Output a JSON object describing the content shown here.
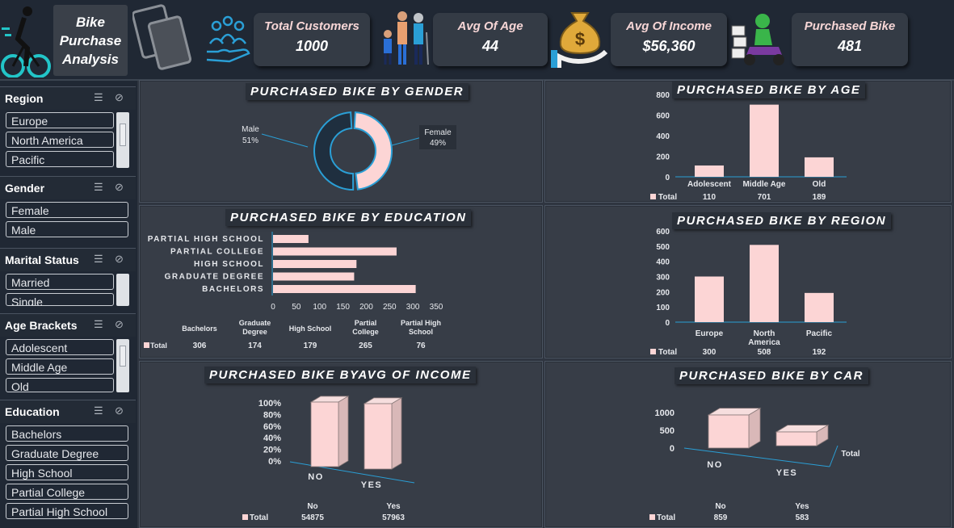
{
  "header": {
    "title_line1": "Bike",
    "title_line2": "Purchase",
    "title_line3": "Analysis",
    "icons": [
      "cyclist-icon",
      "cards-icon",
      "customers-hand-icon",
      "family-icon",
      "money-bag-hand-icon",
      "delivery-scooter-icon"
    ],
    "kpis": [
      {
        "label": "Total Customers",
        "value": "1000"
      },
      {
        "label": "Avg Of Age",
        "value": "44"
      },
      {
        "label": "Avg Of Income",
        "value": "$56,360"
      },
      {
        "label": "Purchased Bike",
        "value": "481"
      }
    ]
  },
  "slicers": {
    "region": {
      "title": "Region",
      "items": [
        "Europe",
        "North America",
        "Pacific"
      ]
    },
    "gender": {
      "title": "Gender",
      "items": [
        "Female",
        "Male"
      ]
    },
    "marital": {
      "title": "Marital Status",
      "items": [
        "Married",
        "Single"
      ]
    },
    "age": {
      "title": "Age Brackets",
      "items": [
        "Adolescent",
        "Middle Age",
        "Old"
      ]
    },
    "education": {
      "title": "Education",
      "items": [
        "Bachelors",
        "Graduate Degree",
        "High School",
        "Partial College",
        "Partial High School"
      ]
    }
  },
  "colors": {
    "bar": "#fcd5d5",
    "dark": "#1f2f3f",
    "accent": "#2a9fd6"
  },
  "chart_data": [
    {
      "type": "pie",
      "title": "PURCHASED BIKE BY GENDER",
      "categories": [
        "Male",
        "Female"
      ],
      "values": [
        51,
        49
      ],
      "labels": [
        "51%",
        "49%"
      ]
    },
    {
      "type": "bar",
      "title": "PURCHASED BIKE BY AGE",
      "categories": [
        "Adolescent",
        "Middle Age",
        "Old"
      ],
      "series": [
        {
          "name": "Total",
          "values": [
            110,
            701,
            189
          ]
        }
      ],
      "ylim": [
        0,
        800
      ],
      "yticks": [
        "800",
        "600",
        "400",
        "200",
        "0"
      ],
      "table_values": [
        "110",
        "701",
        "189"
      ]
    },
    {
      "type": "bar",
      "title": "PURCHASED BIKE BY EDUCATION",
      "categories": [
        "PARTIAL HIGH SCHOOL",
        "PARTIAL COLLEGE",
        "HIGH SCHOOL",
        "GRADUATE DEGREE",
        "BACHELORS"
      ],
      "series": [
        {
          "name": "Total",
          "values": [
            76,
            265,
            179,
            174,
            306
          ]
        }
      ],
      "xlim": [
        0,
        350
      ],
      "xticks": [
        "0",
        "50",
        "100",
        "150",
        "200",
        "250",
        "300",
        "350"
      ],
      "table_categories": [
        "Bachelors",
        "Graduate Degree",
        "High School",
        "Partial College",
        "Partial High School"
      ],
      "table_values": [
        "306",
        "174",
        "179",
        "265",
        "76"
      ]
    },
    {
      "type": "bar",
      "title": "PURCHASED BIKE BY REGION",
      "categories": [
        "Europe",
        "North America",
        "Pacific"
      ],
      "series": [
        {
          "name": "Total",
          "values": [
            300,
            508,
            192
          ]
        }
      ],
      "ylim": [
        0,
        600
      ],
      "yticks": [
        "600",
        "500",
        "400",
        "300",
        "200",
        "100",
        "0"
      ],
      "table_values": [
        "300",
        "508",
        "192"
      ]
    },
    {
      "type": "bar",
      "title": "PURCHASED BIKE BYAVG OF INCOME",
      "categories": [
        "NO",
        "YES"
      ],
      "series": [
        {
          "name": "Total",
          "values": [
            54875,
            57963
          ]
        }
      ],
      "yticks": [
        "100%",
        "80%",
        "60%",
        "40%",
        "20%",
        "0%"
      ],
      "table_categories": [
        "No",
        "Yes"
      ],
      "table_values": [
        "54875",
        "57963"
      ]
    },
    {
      "type": "bar",
      "title": "PURCHASED BIKE BY CAR",
      "categories": [
        "NO",
        "YES"
      ],
      "series": [
        {
          "name": "Total",
          "values": [
            859,
            583
          ]
        }
      ],
      "yticks": [
        "1000",
        "500",
        "0"
      ],
      "axis_series_label": "Total",
      "table_categories": [
        "No",
        "Yes"
      ],
      "table_values": [
        "859",
        "583"
      ]
    }
  ]
}
